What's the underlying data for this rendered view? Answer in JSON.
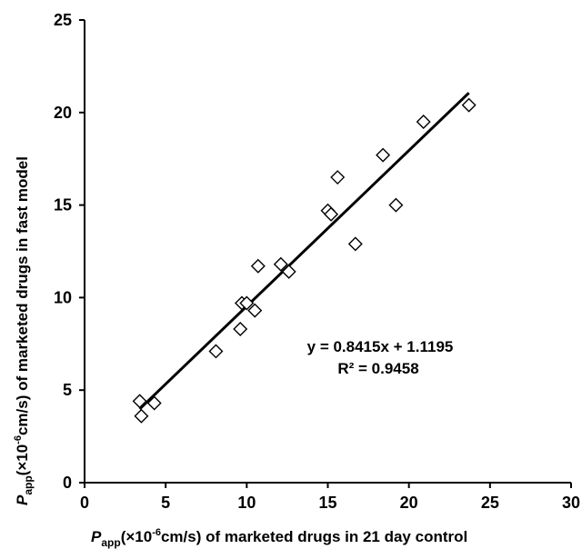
{
  "chart_data": {
    "type": "scatter",
    "x_axis": {
      "label_prefix": "P",
      "label_subscript": "app",
      "label_unit_a": "(×10",
      "label_unit_exp": "-6",
      "label_rest": "cm/s) of marketed drugs in 21 day control",
      "min": 0,
      "max": 30,
      "ticks": [
        0,
        5,
        10,
        15,
        20,
        25,
        30
      ]
    },
    "y_axis": {
      "label_prefix": "P",
      "label_subscript": "app",
      "label_unit_a": "(×10",
      "label_unit_exp": "-6",
      "label_rest": "cm/s) of marketed drugs in fast model",
      "min": 0,
      "max": 25,
      "ticks": [
        0,
        5,
        10,
        15,
        20,
        25
      ]
    },
    "points": [
      {
        "x": 3.4,
        "y": 4.4
      },
      {
        "x": 3.5,
        "y": 3.6
      },
      {
        "x": 4.3,
        "y": 4.3
      },
      {
        "x": 8.1,
        "y": 7.1
      },
      {
        "x": 9.6,
        "y": 8.3
      },
      {
        "x": 9.7,
        "y": 9.7
      },
      {
        "x": 10.0,
        "y": 9.7
      },
      {
        "x": 10.5,
        "y": 9.3
      },
      {
        "x": 10.7,
        "y": 11.7
      },
      {
        "x": 12.1,
        "y": 11.8
      },
      {
        "x": 12.6,
        "y": 11.4
      },
      {
        "x": 15.0,
        "y": 14.7
      },
      {
        "x": 15.2,
        "y": 14.5
      },
      {
        "x": 15.6,
        "y": 16.5
      },
      {
        "x": 16.7,
        "y": 12.9
      },
      {
        "x": 18.4,
        "y": 17.7
      },
      {
        "x": 19.2,
        "y": 15.0
      },
      {
        "x": 20.9,
        "y": 19.5
      },
      {
        "x": 23.7,
        "y": 20.4
      }
    ],
    "trendline": {
      "slope": 0.8415,
      "intercept": 1.1195,
      "x_start": 3.4,
      "x_end": 23.7
    },
    "equation": "y = 0.8415x + 1.1195",
    "r_squared": "R² = 0.9458",
    "grid": false,
    "marker": "open-diamond",
    "colors": {
      "marker": "#000000",
      "line": "#000000",
      "axes": "#000000"
    }
  }
}
